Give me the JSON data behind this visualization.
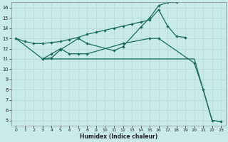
{
  "xlabel": "Humidex (Indice chaleur)",
  "background_color": "#c8eae8",
  "grid_color": "#b4d8d4",
  "line_color": "#1a6b5a",
  "xlim": [
    -0.5,
    23.5
  ],
  "ylim": [
    4.5,
    16.5
  ],
  "xticks": [
    0,
    1,
    2,
    3,
    4,
    5,
    6,
    7,
    8,
    9,
    10,
    11,
    12,
    13,
    14,
    15,
    16,
    17,
    18,
    19,
    20,
    21,
    22,
    23
  ],
  "yticks": [
    5,
    6,
    7,
    8,
    9,
    10,
    11,
    12,
    13,
    14,
    15,
    16
  ],
  "series1_x": [
    0,
    1,
    2,
    3,
    4,
    5,
    6,
    7,
    8,
    9,
    10,
    11,
    12,
    13,
    14,
    15,
    16,
    17,
    18,
    19
  ],
  "series1_y": [
    13.0,
    12.7,
    12.5,
    12.5,
    12.6,
    12.7,
    12.9,
    13.1,
    13.4,
    13.6,
    13.8,
    14.0,
    14.2,
    14.4,
    14.6,
    14.8,
    15.8,
    14.2,
    13.2,
    13.1
  ],
  "series2_x": [
    3,
    4,
    5,
    7,
    8,
    11,
    12,
    14,
    15,
    16,
    17,
    18
  ],
  "series2_y": [
    11.0,
    11.1,
    11.9,
    13.0,
    12.5,
    11.8,
    12.2,
    14.1,
    15.0,
    16.2,
    16.5,
    16.5
  ],
  "series3_x": [
    3,
    4,
    5,
    6,
    7,
    8,
    12,
    15,
    16,
    20,
    21,
    22,
    23
  ],
  "series3_y": [
    11.0,
    11.5,
    12.0,
    11.5,
    11.5,
    11.5,
    12.5,
    13.0,
    13.0,
    10.6,
    8.0,
    5.0,
    4.9
  ],
  "series4_x": [
    0,
    3,
    20,
    22,
    23
  ],
  "series4_y": [
    13.0,
    11.0,
    11.0,
    5.0,
    4.9
  ]
}
